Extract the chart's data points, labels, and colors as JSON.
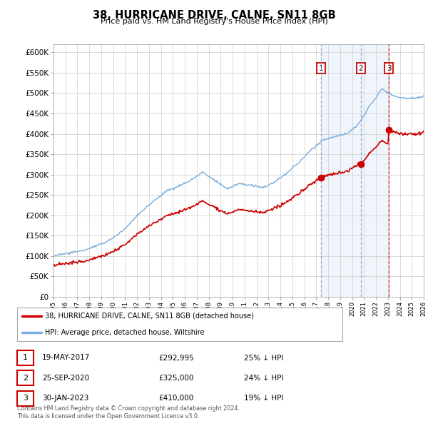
{
  "title": "38, HURRICANE DRIVE, CALNE, SN11 8GB",
  "subtitle": "Price paid vs. HM Land Registry's House Price Index (HPI)",
  "ylim": [
    0,
    620000
  ],
  "yticks": [
    0,
    50000,
    100000,
    150000,
    200000,
    250000,
    300000,
    350000,
    400000,
    450000,
    500000,
    550000,
    600000
  ],
  "xlim": [
    1995,
    2026
  ],
  "background_color": "#ffffff",
  "grid_color": "#cccccc",
  "hpi_color": "#7aaddb",
  "hpi_fill_color": "#c8ddf0",
  "price_color": "#cc0000",
  "vline1_color": "#8888bb",
  "vline2_color": "#8888bb",
  "vline3_color": "#cc0000",
  "shade_color": "#ddeeff",
  "transactions": [
    {
      "date": 2017.38,
      "price": 292995,
      "label": "1",
      "vline_style": "--",
      "vline_color": "#9999bb"
    },
    {
      "date": 2020.73,
      "price": 325000,
      "label": "2",
      "vline_style": "--",
      "vline_color": "#9999bb"
    },
    {
      "date": 2023.08,
      "price": 410000,
      "label": "3",
      "vline_style": "--",
      "vline_color": "#cc0000"
    }
  ],
  "legend_label_price": "38, HURRICANE DRIVE, CALNE, SN11 8GB (detached house)",
  "legend_label_hpi": "HPI: Average price, detached house, Wiltshire",
  "table_rows": [
    {
      "num": "1",
      "date": "19-MAY-2017",
      "price": "£292,995",
      "pct": "25% ↓ HPI"
    },
    {
      "num": "2",
      "date": "25-SEP-2020",
      "price": "£325,000",
      "pct": "24% ↓ HPI"
    },
    {
      "num": "3",
      "date": "30-JAN-2023",
      "price": "£410,000",
      "pct": "19% ↓ HPI"
    }
  ],
  "footer": "Contains HM Land Registry data © Crown copyright and database right 2024.\nThis data is licensed under the Open Government Licence v3.0."
}
